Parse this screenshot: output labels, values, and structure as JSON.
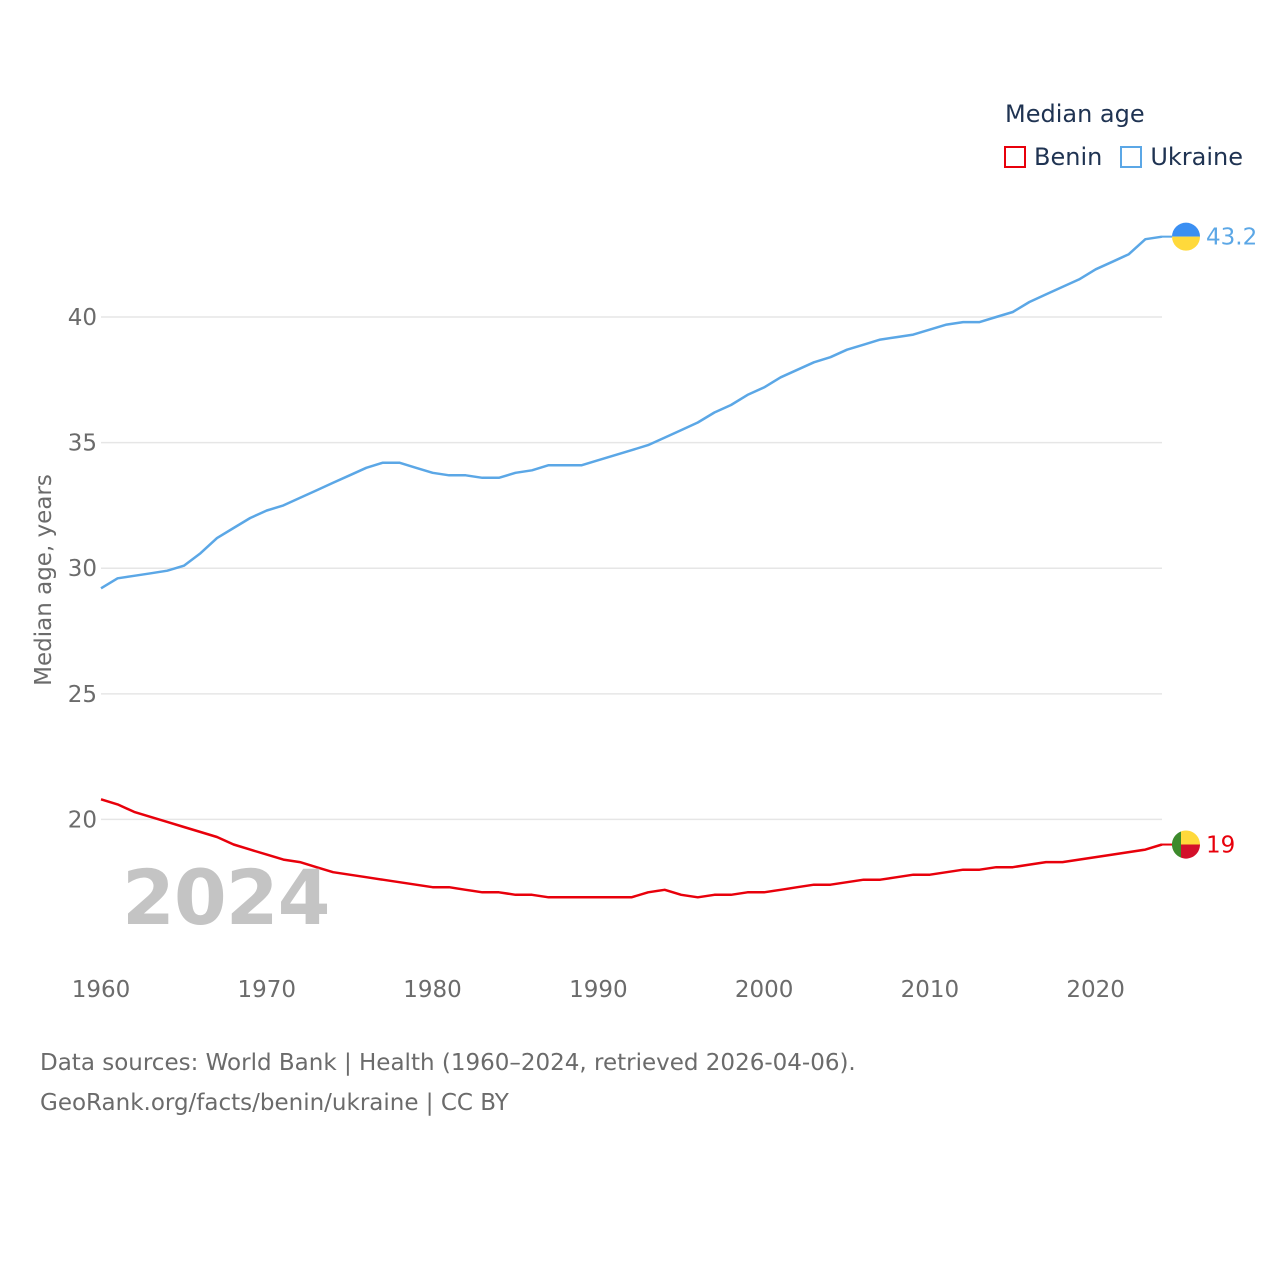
{
  "legend": {
    "title": "Median age",
    "items": [
      {
        "name": "Benin",
        "color": "#e8000b"
      },
      {
        "name": "Ukraine",
        "color": "#5ba7e6"
      }
    ]
  },
  "watermark_year": "2024",
  "source": {
    "line1": "Data sources: World Bank | Health (1960–2024, retrieved 2026-04-06).",
    "line2": "GeoRank.org/facts/benin/ukraine | CC BY"
  },
  "chart_data": {
    "type": "line",
    "title": "Median age",
    "xlabel": "",
    "ylabel": "Median age, years",
    "xlim": [
      1960,
      2024
    ],
    "ylim": [
      15.2,
      44.5
    ],
    "x_ticks": [
      1960,
      1970,
      1980,
      1990,
      2000,
      2010,
      2020
    ],
    "y_ticks": [
      20,
      25,
      30,
      35,
      40
    ],
    "grid": true,
    "legend_position": "top-right",
    "x": [
      1960,
      1961,
      1962,
      1963,
      1964,
      1965,
      1966,
      1967,
      1968,
      1969,
      1970,
      1971,
      1972,
      1973,
      1974,
      1975,
      1976,
      1977,
      1978,
      1979,
      1980,
      1981,
      1982,
      1983,
      1984,
      1985,
      1986,
      1987,
      1988,
      1989,
      1990,
      1991,
      1992,
      1993,
      1994,
      1995,
      1996,
      1997,
      1998,
      1999,
      2000,
      2001,
      2002,
      2003,
      2004,
      2005,
      2006,
      2007,
      2008,
      2009,
      2010,
      2011,
      2012,
      2013,
      2014,
      2015,
      2016,
      2017,
      2018,
      2019,
      2020,
      2021,
      2022,
      2023,
      2024
    ],
    "series": [
      {
        "name": "Benin",
        "color": "#e8000b",
        "end_label": "19",
        "values": [
          20.8,
          20.6,
          20.3,
          20.1,
          19.9,
          19.7,
          19.5,
          19.3,
          19.0,
          18.8,
          18.6,
          18.4,
          18.3,
          18.1,
          17.9,
          17.8,
          17.7,
          17.6,
          17.5,
          17.4,
          17.3,
          17.3,
          17.2,
          17.1,
          17.1,
          17.0,
          17.0,
          16.9,
          16.9,
          16.9,
          16.9,
          16.9,
          16.9,
          17.1,
          17.2,
          17.0,
          16.9,
          17.0,
          17.0,
          17.1,
          17.1,
          17.2,
          17.3,
          17.4,
          17.4,
          17.5,
          17.6,
          17.6,
          17.7,
          17.8,
          17.8,
          17.9,
          18.0,
          18.0,
          18.1,
          18.1,
          18.2,
          18.3,
          18.3,
          18.4,
          18.5,
          18.6,
          18.7,
          18.8,
          19.0
        ]
      },
      {
        "name": "Ukraine",
        "color": "#5ba7e6",
        "end_label": "43.2",
        "values": [
          29.2,
          29.6,
          29.7,
          29.8,
          29.9,
          30.1,
          30.6,
          31.2,
          31.6,
          32.0,
          32.3,
          32.5,
          32.8,
          33.1,
          33.4,
          33.7,
          34.0,
          34.2,
          34.2,
          34.0,
          33.8,
          33.7,
          33.7,
          33.6,
          33.6,
          33.8,
          33.9,
          34.1,
          34.1,
          34.1,
          34.3,
          34.5,
          34.7,
          34.9,
          35.2,
          35.5,
          35.8,
          36.2,
          36.5,
          36.9,
          37.2,
          37.6,
          37.9,
          38.2,
          38.4,
          38.7,
          38.9,
          39.1,
          39.2,
          39.3,
          39.5,
          39.7,
          39.8,
          39.8,
          40.0,
          40.2,
          40.6,
          40.9,
          41.2,
          41.5,
          41.9,
          42.2,
          42.5,
          43.1,
          43.2
        ]
      }
    ]
  }
}
